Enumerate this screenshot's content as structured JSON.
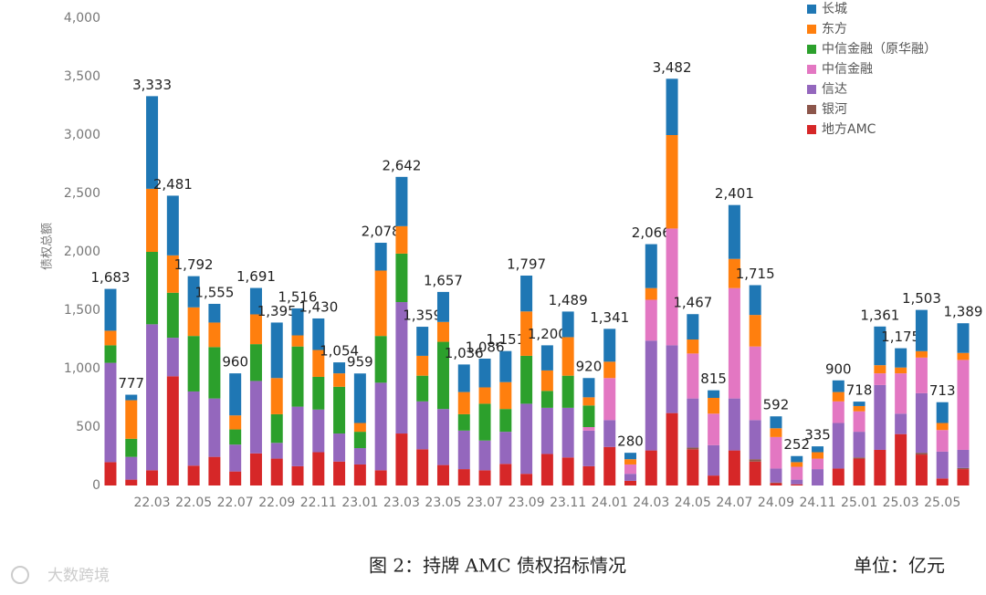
{
  "chart_data": {
    "type": "stacked_bar",
    "y_label": "债权总额",
    "caption": "图 2：持牌 AMC 债权招标情况",
    "unit_note": "单位：亿元",
    "watermark": "大数跨境",
    "categories": [
      null,
      null,
      "22.03",
      null,
      "22.05",
      null,
      "22.07",
      null,
      "22.09",
      null,
      "22.11",
      null,
      "23.01",
      null,
      "23.03",
      null,
      "23.05",
      null,
      "23.07",
      null,
      "23.09",
      null,
      "23.11",
      null,
      "24.01",
      null,
      "24.03",
      null,
      "24.05",
      null,
      "24.07",
      null,
      "24.09",
      null,
      "24.11",
      null,
      "25.01",
      null,
      "25.03",
      null,
      "25.05",
      null
    ],
    "ylim": [
      0,
      4000
    ],
    "yticks": [
      0,
      500,
      {
        "value": 1000,
        "label": "1,000"
      },
      {
        "value": 1500,
        "label": "1,500"
      },
      {
        "value": 2000,
        "label": "2,000"
      },
      {
        "value": 2500,
        "label": "2,500"
      },
      {
        "value": 3000,
        "label": "3,000"
      },
      {
        "value": 3500,
        "label": "3,500"
      },
      {
        "value": 4000,
        "label": "4,000"
      }
    ],
    "grid": false,
    "legend": "top-right",
    "series": [
      {
        "name": "地方AMC",
        "color": "#d62728",
        "values": [
          200,
          50,
          130,
          935,
          170,
          245,
          120,
          275,
          230,
          165,
          285,
          205,
          180,
          130,
          445,
          310,
          175,
          140,
          130,
          185,
          100,
          270,
          240,
          165,
          330,
          40,
          300,
          620,
          310,
          85,
          300,
          205,
          20,
          10,
          0,
          145,
          230,
          305,
          440,
          265,
          60,
          140
        ]
      },
      {
        "name": "银河",
        "color": "#8c564b",
        "values": [
          0,
          0,
          0,
          0,
          0,
          0,
          0,
          0,
          0,
          0,
          0,
          0,
          0,
          0,
          0,
          0,
          0,
          0,
          0,
          0,
          0,
          0,
          0,
          0,
          0,
          0,
          0,
          0,
          15,
          0,
          0,
          20,
          5,
          0,
          0,
          0,
          10,
          0,
          0,
          15,
          0,
          10
        ]
      },
      {
        "name": "信达",
        "color": "#9467bd",
        "values": [
          850,
          195,
          1250,
          330,
          635,
          500,
          230,
          620,
          135,
          510,
          365,
          240,
          140,
          750,
          1125,
          410,
          480,
          330,
          255,
          275,
          600,
          395,
          425,
          305,
          230,
          60,
          940,
          580,
          420,
          260,
          445,
          335,
          120,
          40,
          140,
          390,
          220,
          555,
          175,
          510,
          230,
          155
        ]
      },
      {
        "name": "中信金融",
        "color": "#e377c2",
        "values": [
          0,
          0,
          0,
          0,
          0,
          0,
          0,
          0,
          0,
          0,
          0,
          0,
          0,
          0,
          0,
          0,
          0,
          0,
          0,
          0,
          0,
          0,
          0,
          30,
          360,
          80,
          350,
          1000,
          385,
          270,
          945,
          630,
          270,
          110,
          90,
          185,
          175,
          100,
          345,
          305,
          185,
          770
        ]
      },
      {
        "name": "中信金融（原华融）",
        "color": "#2ca02c",
        "values": [
          150,
          155,
          620,
          385,
          475,
          440,
          130,
          315,
          245,
          515,
          280,
          400,
          140,
          400,
          415,
          220,
          575,
          140,
          315,
          195,
          410,
          145,
          275,
          185,
          0,
          0,
          0,
          0,
          0,
          0,
          0,
          0,
          0,
          0,
          0,
          0,
          0,
          0,
          0,
          0,
          0,
          0
        ]
      },
      {
        "name": "东方",
        "color": "#ff7f0e",
        "values": [
          125,
          330,
          540,
          320,
          245,
          210,
          120,
          255,
          310,
          95,
          230,
          115,
          75,
          560,
          235,
          170,
          170,
          190,
          140,
          230,
          380,
          175,
          330,
          70,
          140,
          45,
          100,
          800,
          120,
          135,
          250,
          270,
          75,
          40,
          55,
          80,
          45,
          70,
          50,
          55,
          60,
          60
        ]
      },
      {
        "name": "长城",
        "color": "#1f77b4",
        "values": [
          358,
          47,
          793,
          511,
          267,
          160,
          360,
          226,
          475,
          231,
          270,
          94,
          424,
          238,
          422,
          249,
          257,
          236,
          246,
          266,
          307,
          215,
          219,
          165,
          281,
          55,
          376,
          482,
          217,
          65,
          461,
          255,
          102,
          52,
          50,
          100,
          38,
          331,
          165,
          353,
          178,
          254
        ]
      }
    ],
    "totals": [
      1683,
      777,
      3333,
      2481,
      1792,
      1555,
      960,
      1691,
      1395,
      1516,
      1430,
      1054,
      959,
      2078,
      2642,
      1359,
      1657,
      1036,
      1086,
      1151,
      1797,
      1200,
      1489,
      920,
      1341,
      280,
      2066,
      3482,
      1467,
      815,
      2401,
      1715,
      592,
      252,
      335,
      900,
      718,
      1361,
      1175,
      1503,
      713,
      1389
    ],
    "total_labels": [
      "1,683",
      "777",
      "3,333",
      "2,481",
      "1,792",
      "1,555",
      "960",
      "1,691",
      "1,395",
      "1,516",
      "1,430",
      "1,054",
      "959",
      "2,078",
      "2,642",
      "1,359",
      "1,657",
      "1,036",
      "1,086",
      "1,151",
      "1,797",
      "1,200",
      "1,489",
      "920",
      "1,341",
      "280",
      "2,066",
      "3,482",
      "1,467",
      "815",
      "2,401",
      "1,715",
      "592",
      "252",
      "335",
      "900",
      "718",
      "1,361",
      "1,175",
      "1,503",
      "713",
      "1,389"
    ]
  }
}
